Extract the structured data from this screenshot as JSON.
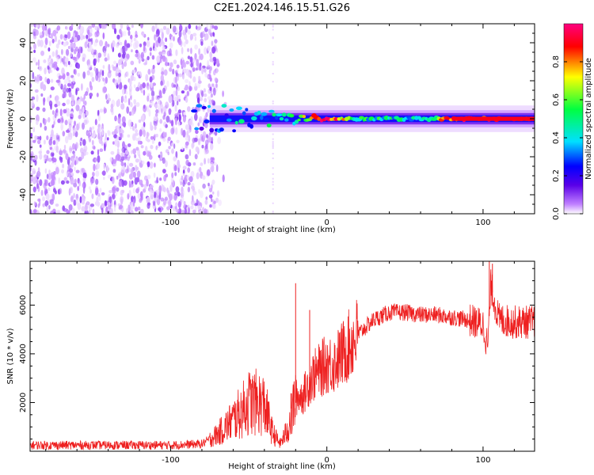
{
  "title": "C2E1.2024.146.15.51.G26",
  "chart_data": [
    {
      "type": "heatmap",
      "xlabel": "Height of straight line (km)",
      "ylabel": "Frequency (Hz)",
      "xlim": [
        -190,
        133
      ],
      "ylim": [
        -50,
        50
      ],
      "xticks": [
        -100,
        0,
        100
      ],
      "yticks": [
        -40,
        -20,
        0,
        20,
        40
      ],
      "colorbar": {
        "label": "Normalized spectral amplitude",
        "range": [
          0.0,
          1.0
        ],
        "ticks": [
          0.0,
          0.2,
          0.4,
          0.6,
          0.8
        ],
        "colormap": [
          "#ffffff",
          "#c080ff",
          "#5a00e8",
          "#0000ff",
          "#00e0ff",
          "#00ff40",
          "#ffff00",
          "#ff0000",
          "#ff0080"
        ]
      },
      "noise_region_x": [
        -190,
        -70
      ],
      "signal": [
        {
          "x": -80,
          "amp": 0.35
        },
        {
          "x": -60,
          "amp": 0.45
        },
        {
          "x": -40,
          "amp": 0.5
        },
        {
          "x": -20,
          "amp": 0.55
        },
        {
          "x": 0,
          "amp": 0.95
        },
        {
          "x": 20,
          "amp": 0.55
        },
        {
          "x": 60,
          "amp": 0.5
        },
        {
          "x": 80,
          "amp": 0.9
        },
        {
          "x": 133,
          "amp": 0.95
        }
      ]
    },
    {
      "type": "line",
      "xlabel": "Height of straight line (km)",
      "ylabel": "SNR (10 * v/v)",
      "xlim": [
        -190,
        133
      ],
      "ylim": [
        0,
        7800
      ],
      "xticks": [
        -100,
        0,
        100
      ],
      "yticks": [
        2000,
        4000,
        6000
      ],
      "color": "#ee2020",
      "series": [
        {
          "x": [
            -190,
            -140,
            -100,
            -80,
            -70,
            -60,
            -55,
            -50,
            -45,
            -40,
            -35,
            -30,
            -25,
            -20,
            -15,
            -10,
            -5,
            0,
            5,
            10,
            20,
            30,
            40,
            50,
            60,
            70,
            80,
            90,
            100,
            103,
            105,
            110,
            120,
            133
          ],
          "y": [
            250,
            250,
            250,
            300,
            700,
            1300,
            1600,
            2000,
            2000,
            1900,
            800,
            300,
            900,
            2200,
            2300,
            3000,
            3300,
            3600,
            3600,
            4000,
            4800,
            5400,
            5700,
            5700,
            5600,
            5600,
            5500,
            5400,
            5200,
            4300,
            6800,
            5400,
            5300,
            5300
          ]
        }
      ],
      "spikes": [
        {
          "x": -20,
          "y": 6900
        },
        {
          "x": -11,
          "y": 5800
        },
        {
          "x": 104,
          "y": 7800
        },
        {
          "x": 106,
          "y": 7700
        }
      ]
    }
  ]
}
